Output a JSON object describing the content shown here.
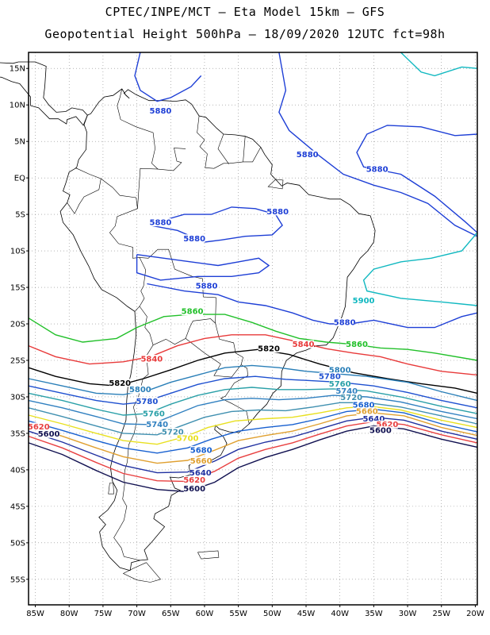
{
  "header": {
    "title_line1": "CPTEC/INPE/MCT –  Eta Model 15km – GFS",
    "title_line2": "Geopotential Height 500hPa – 18/09/2020 12UTC fct=98h"
  },
  "map": {
    "lat_labels": [
      "15N",
      "10N",
      "5N",
      "EQ",
      "5S",
      "10S",
      "15S",
      "20S",
      "25S",
      "30S",
      "35S",
      "40S",
      "45S",
      "50S",
      "55S"
    ],
    "lon_labels": [
      "85W",
      "80W",
      "75W",
      "70W",
      "65W",
      "60W",
      "55W",
      "50W",
      "45W",
      "40W",
      "35W",
      "30W",
      "25W",
      "20W"
    ],
    "colors": {
      "c5880": "#1e3fd6",
      "c5900": "#10b8c0",
      "c5860": "#22c02a",
      "c5840": "#e83a3a",
      "c5820": "#000000",
      "c5800": "#2a7fb8",
      "c5780": "#1e50d0",
      "c5760": "#2aa0a8",
      "c5740": "#3080c0",
      "c5720": "#4090b0",
      "c5700": "#e8e020",
      "c5680": "#1860d0",
      "c5660": "#e0a030",
      "c5640": "#2030a0",
      "c5620": "#e84040",
      "c5600": "#101050",
      "coast": "#000000",
      "grid": "#888888"
    },
    "contour_labels": [
      {
        "text": "5880",
        "color": "c5880",
        "lon": -66.5,
        "lat": 9.0
      },
      {
        "text": "5880",
        "color": "c5880",
        "lon": -44.8,
        "lat": 3.0
      },
      {
        "text": "5880",
        "color": "c5880",
        "lon": -34.5,
        "lat": 1.0
      },
      {
        "text": "5880",
        "color": "c5880",
        "lon": -49.2,
        "lat": -4.8
      },
      {
        "text": "5880",
        "color": "c5880",
        "lon": -66.5,
        "lat": -6.3
      },
      {
        "text": "5880",
        "color": "c5880",
        "lon": -61.5,
        "lat": -8.5
      },
      {
        "text": "5880",
        "color": "c5880",
        "lon": -59.7,
        "lat": -15.0
      },
      {
        "text": "5900",
        "color": "c5900",
        "lon": -36.5,
        "lat": -17.0
      },
      {
        "text": "5880",
        "color": "c5880",
        "lon": -39.3,
        "lat": -20.0
      },
      {
        "text": "5860",
        "color": "c5860",
        "lon": -61.8,
        "lat": -18.5
      },
      {
        "text": "5860",
        "color": "c5860",
        "lon": -37.5,
        "lat": -23.0
      },
      {
        "text": "5840",
        "color": "c5840",
        "lon": -45.4,
        "lat": -23.0
      },
      {
        "text": "5840",
        "color": "c5840",
        "lon": -67.8,
        "lat": -25.0
      },
      {
        "text": "5820",
        "color": "c5820",
        "lon": -50.5,
        "lat": -23.6
      },
      {
        "text": "5820",
        "color": "c5820",
        "lon": -72.5,
        "lat": -28.3
      },
      {
        "text": "5800",
        "color": "c5800",
        "lon": -69.5,
        "lat": -29.2
      },
      {
        "text": "5800",
        "color": "c5800",
        "lon": -40.0,
        "lat": -26.5
      },
      {
        "text": "5780",
        "color": "c5780",
        "lon": -68.5,
        "lat": -30.8
      },
      {
        "text": "5780",
        "color": "c5780",
        "lon": -41.5,
        "lat": -27.4
      },
      {
        "text": "5760",
        "color": "c5760",
        "lon": -67.5,
        "lat": -32.5
      },
      {
        "text": "5760",
        "color": "c5760",
        "lon": -40.0,
        "lat": -28.4
      },
      {
        "text": "5740",
        "color": "c5740",
        "lon": -67.0,
        "lat": -34.0
      },
      {
        "text": "5740",
        "color": "c5740",
        "lon": -39.0,
        "lat": -29.4
      },
      {
        "text": "5720",
        "color": "c5720",
        "lon": -64.7,
        "lat": -35.0
      },
      {
        "text": "5720",
        "color": "c5720",
        "lon": -38.3,
        "lat": -30.3
      },
      {
        "text": "5700",
        "color": "c5700",
        "lon": -62.5,
        "lat": -35.9
      },
      {
        "text": "5680",
        "color": "c5680",
        "lon": -60.5,
        "lat": -37.5
      },
      {
        "text": "5660",
        "color": "c5660",
        "lon": -60.5,
        "lat": -39.0
      },
      {
        "text": "5640",
        "color": "c5640",
        "lon": -60.6,
        "lat": -40.6
      },
      {
        "text": "5620",
        "color": "c5620",
        "lon": -61.5,
        "lat": -41.6
      },
      {
        "text": "5600",
        "color": "c5600",
        "lon": -61.5,
        "lat": -42.8
      },
      {
        "text": "5680",
        "color": "c5680",
        "lon": -36.5,
        "lat": -31.3
      },
      {
        "text": "5660",
        "color": "c5660",
        "lon": -36.0,
        "lat": -32.2
      },
      {
        "text": "5640",
        "color": "c5640",
        "lon": -35.0,
        "lat": -33.2
      },
      {
        "text": "5620",
        "color": "c5620",
        "lon": -33.0,
        "lat": -34.0
      },
      {
        "text": "5600",
        "color": "c5600",
        "lon": -34.0,
        "lat": -34.8
      },
      {
        "text": "5620",
        "color": "c5620",
        "lon": -84.5,
        "lat": -34.3
      },
      {
        "text": "5600",
        "color": "c5600",
        "lon": -83.0,
        "lat": -35.3
      }
    ]
  }
}
